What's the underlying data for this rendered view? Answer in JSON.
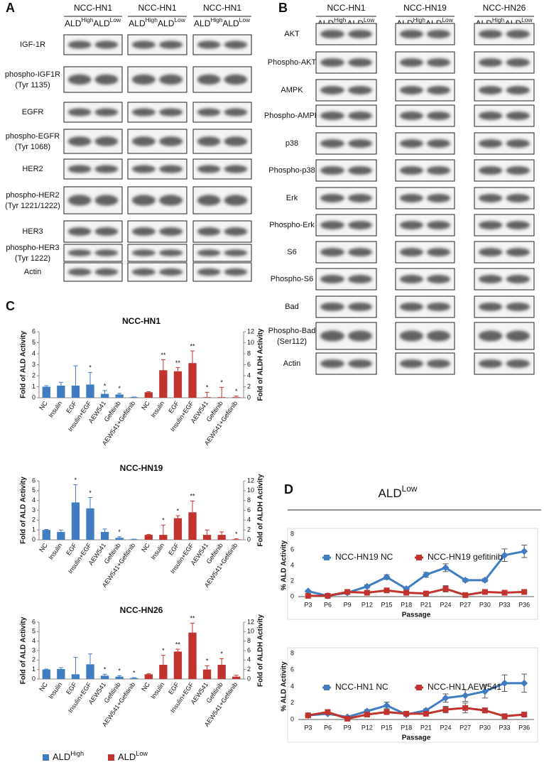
{
  "panel_a": {
    "label": "A",
    "columns": [
      "NCC-HN1",
      "NCC-HN1",
      "NCC-HN1"
    ],
    "ald": [
      {
        "base": "ALD",
        "sup": "High"
      },
      {
        "base": "ALD",
        "sup": "Low"
      }
    ],
    "rows": [
      [
        "IGF-1R"
      ],
      [
        "phospho-IGF1R",
        "(Tyr 1135)"
      ],
      [
        "EGFR"
      ],
      [
        "phospho-EGFR",
        "(Tyr 1068)"
      ],
      [
        "HER2"
      ],
      [
        "phospho-HER2",
        "(Tyr 1221/1222)"
      ],
      [
        "HER3"
      ],
      [
        "phospho-HER3",
        "(Tyr 1222)"
      ],
      [
        "Actin"
      ]
    ]
  },
  "panel_b": {
    "label": "B",
    "columns": [
      "NCC-HN1",
      "NCC-HN19",
      "NCC-HN26"
    ],
    "ald": [
      {
        "base": "ALD",
        "sup": "High"
      },
      {
        "base": "ALD",
        "sup": "Low"
      }
    ],
    "rows": [
      [
        "AKT"
      ],
      [
        "Phospho-AKT"
      ],
      [
        "AMPK"
      ],
      [
        "Phospho-AMPK"
      ],
      [
        "p38"
      ],
      [
        "Phospho-p38"
      ],
      [
        "Erk"
      ],
      [
        "Phospho-Erk"
      ],
      [
        "S6"
      ],
      [
        "Phospho-S6"
      ],
      [
        "Bad"
      ],
      [
        "Phospho-Bad",
        "(Ser112)"
      ],
      [
        "Actin"
      ]
    ]
  },
  "panel_c": {
    "label": "C",
    "legend": [
      {
        "base": "ALD",
        "sup": "High",
        "color": "#3f7cc0"
      },
      {
        "base": "ALD",
        "sup": "Low",
        "color": "#c0332f"
      }
    ]
  },
  "panel_d": {
    "label": "D",
    "header": {
      "base": "ALD",
      "sup": "Low"
    }
  },
  "chart_data": [
    {
      "type": "bar",
      "title": "NCC-HN1",
      "ylabel": "Fold of ALD Activity",
      "y2label": "Fold of ALDH Activity",
      "categories": [
        "NC",
        "Insulin",
        "EGF",
        "Insulin+EGF",
        "AEW541",
        "Gefitinib",
        "AEW541+Gefitinib",
        "NC",
        "Insulin",
        "EGF",
        "Insulin+EGF",
        "AEW541",
        "Gefitinib",
        "AEW541+Gefitinib"
      ],
      "ylim": [
        0,
        6
      ],
      "yticks": [
        0,
        1,
        2,
        3,
        4,
        5,
        6
      ],
      "y2lim": [
        0,
        12
      ],
      "y2ticks": [
        0,
        2,
        4,
        6,
        8,
        10,
        12
      ],
      "series": [
        {
          "color": "#3f7cc0",
          "values": [
            1.0,
            1.1,
            1.1,
            1.2,
            0.35,
            0.3,
            0.05,
            null,
            null,
            null,
            null,
            null,
            null,
            null
          ],
          "errors": [
            0.1,
            0.3,
            1.8,
            1.1,
            0.3,
            0.1,
            0.02,
            null,
            null,
            null,
            null,
            null,
            null,
            null
          ],
          "annotations": [
            null,
            null,
            null,
            "*",
            "*",
            "*",
            null,
            null,
            null,
            null,
            null,
            null,
            null,
            null
          ]
        },
        {
          "axis": "y2",
          "color": "#c0332f",
          "values": [
            null,
            null,
            null,
            null,
            null,
            null,
            null,
            1.0,
            5.0,
            4.8,
            6.3,
            0.1,
            0.1,
            0.1
          ],
          "errors": [
            null,
            null,
            null,
            null,
            null,
            null,
            null,
            0.1,
            1.9,
            0.7,
            2.2,
            0.9,
            1.8,
            0.2
          ],
          "annotations": [
            null,
            null,
            null,
            null,
            null,
            null,
            null,
            null,
            "**",
            "**",
            "**",
            "*",
            "*",
            "*"
          ]
        }
      ]
    },
    {
      "type": "bar",
      "title": "NCC-HN19",
      "ylabel": "Fold of ALD Activity",
      "y2label": "Fold of ALDH Activity",
      "categories": [
        "NC",
        "Insulin",
        "EGF",
        "Insulin+EGF",
        "AEW541",
        "Gefitinib",
        "AEW541+Gefitinib",
        "NC",
        "Insulin",
        "EGF",
        "Insulin+EGF",
        "AEW541",
        "Gefitinib",
        "AEW541+Gefitinib"
      ],
      "ylim": [
        0,
        6
      ],
      "yticks": [
        0,
        1,
        2,
        3,
        4,
        5,
        6
      ],
      "y2lim": [
        0,
        12
      ],
      "y2ticks": [
        0,
        2,
        4,
        6,
        8,
        10,
        12
      ],
      "series": [
        {
          "color": "#3f7cc0",
          "values": [
            1.0,
            0.8,
            3.8,
            3.2,
            0.8,
            0.2,
            0.05,
            null,
            null,
            null,
            null,
            null,
            null,
            null
          ],
          "errors": [
            0.05,
            0.2,
            1.8,
            1.1,
            0.3,
            0.1,
            0.02,
            null,
            null,
            null,
            null,
            null,
            null,
            null
          ],
          "annotations": [
            null,
            null,
            "*",
            "*",
            null,
            "*",
            null,
            null,
            null,
            null,
            null,
            null,
            null,
            null
          ]
        },
        {
          "axis": "y2",
          "color": "#c0332f",
          "values": [
            null,
            null,
            null,
            null,
            null,
            null,
            null,
            1.0,
            1.0,
            4.4,
            5.6,
            1.0,
            1.0,
            0.1
          ],
          "errors": [
            null,
            null,
            null,
            null,
            null,
            null,
            null,
            0.1,
            2.0,
            0.5,
            2.3,
            1.0,
            0.6,
            0.1
          ],
          "annotations": [
            null,
            null,
            null,
            null,
            null,
            null,
            null,
            null,
            "*",
            "*",
            "**",
            null,
            null,
            "*"
          ]
        }
      ]
    },
    {
      "type": "bar",
      "title": "NCC-HN26",
      "ylabel": "Fold of ALD Activity",
      "y2label": "Fold of ALDH Activity",
      "categories": [
        "NC",
        "Insulin",
        "EGF",
        "Insulin+EGF",
        "AEW541",
        "Gefitinib",
        "AEW541+Gefitinib",
        "NC",
        "Insulin",
        "EGF",
        "Insulin+EGF",
        "AEW541",
        "Gefitinib",
        "AEW541+Gefitinib"
      ],
      "ylim": [
        0,
        6
      ],
      "yticks": [
        0,
        1,
        2,
        3,
        4,
        5,
        6
      ],
      "y2lim": [
        0,
        12
      ],
      "y2ticks": [
        0,
        2,
        4,
        6,
        8,
        10,
        12
      ],
      "series": [
        {
          "color": "#3f7cc0",
          "values": [
            1.0,
            1.05,
            0.5,
            1.55,
            0.35,
            0.25,
            0.1,
            null,
            null,
            null,
            null,
            null,
            null,
            null
          ],
          "errors": [
            0.05,
            0.15,
            1.8,
            1.1,
            0.15,
            0.1,
            0.05,
            null,
            null,
            null,
            null,
            null,
            null,
            null
          ],
          "annotations": [
            null,
            null,
            null,
            null,
            "*",
            "*",
            "*",
            null,
            null,
            null,
            null,
            null,
            null,
            null
          ]
        },
        {
          "axis": "y2",
          "color": "#c0332f",
          "values": [
            null,
            null,
            null,
            null,
            null,
            null,
            null,
            1.0,
            3.0,
            5.8,
            9.8,
            2.0,
            3.0,
            0.5
          ],
          "errors": [
            null,
            null,
            null,
            null,
            null,
            null,
            null,
            0.1,
            2.0,
            0.5,
            2.0,
            0.8,
            1.3,
            0.3
          ],
          "annotations": [
            null,
            null,
            null,
            null,
            null,
            null,
            null,
            null,
            "*",
            "**",
            "**",
            "*",
            "*",
            null
          ]
        }
      ]
    },
    {
      "type": "line",
      "xlabel": "Passage",
      "ylabel": "% ALD Activity",
      "categories": [
        "P3",
        "P6",
        "P9",
        "P12",
        "P15",
        "P18",
        "P21",
        "P24",
        "P27",
        "P30",
        "P33",
        "P36"
      ],
      "ylim": [
        0,
        8
      ],
      "yticks": [
        0,
        2,
        4,
        6,
        8
      ],
      "series": [
        {
          "name": "NCC-HN19 NC",
          "color": "#3f7cc0",
          "marker": "diamond",
          "values": [
            0.7,
            0.1,
            0.5,
            1.3,
            2.5,
            1.0,
            2.8,
            3.7,
            2.1,
            2.1,
            5.3,
            5.8
          ],
          "errors": [
            0.1,
            0.1,
            0.1,
            0.2,
            0.3,
            0.1,
            0.3,
            0.5,
            0.2,
            0.2,
            0.8,
            0.8
          ]
        },
        {
          "name": "NCC-HN19 gefitinib",
          "color": "#c0332f",
          "marker": "square",
          "values": [
            0.1,
            0.1,
            0.6,
            0.5,
            0.8,
            0.5,
            0.4,
            1.0,
            0.2,
            0.6,
            0.5,
            0.6
          ],
          "errors": [
            0.1,
            0.1,
            0.1,
            0.1,
            0.2,
            0.1,
            0.1,
            0.4,
            0.1,
            0.1,
            0.1,
            0.1
          ]
        }
      ]
    },
    {
      "type": "line",
      "xlabel": "Passage",
      "ylabel": "% ALD Activity",
      "categories": [
        "P3",
        "P6",
        "P9",
        "P12",
        "P15",
        "P18",
        "P21",
        "P24",
        "P27",
        "P30",
        "P33",
        "P36"
      ],
      "ylim": [
        0,
        8
      ],
      "yticks": [
        0,
        2,
        4,
        6,
        8
      ],
      "series": [
        {
          "name": "NCC-HN1 NC",
          "color": "#3f7cc0",
          "marker": "diamond",
          "values": [
            0.5,
            0.7,
            0.3,
            1.0,
            1.7,
            0.6,
            1.1,
            2.6,
            2.9,
            3.4,
            4.4,
            4.4
          ],
          "errors": [
            0.1,
            0.1,
            0.1,
            0.2,
            0.4,
            0.1,
            0.2,
            0.5,
            0.7,
            0.8,
            1.0,
            1.1
          ]
        },
        {
          "name": "NCC-HN1 AEW541",
          "color": "#c0332f",
          "marker": "square",
          "values": [
            0.5,
            0.9,
            0.1,
            0.6,
            0.9,
            0.7,
            0.7,
            1.2,
            1.4,
            1.1,
            0.4,
            0.6
          ],
          "errors": [
            0.1,
            0.2,
            0.1,
            0.2,
            0.3,
            0.1,
            0.1,
            0.4,
            0.6,
            0.3,
            0.1,
            0.1
          ]
        }
      ]
    }
  ]
}
